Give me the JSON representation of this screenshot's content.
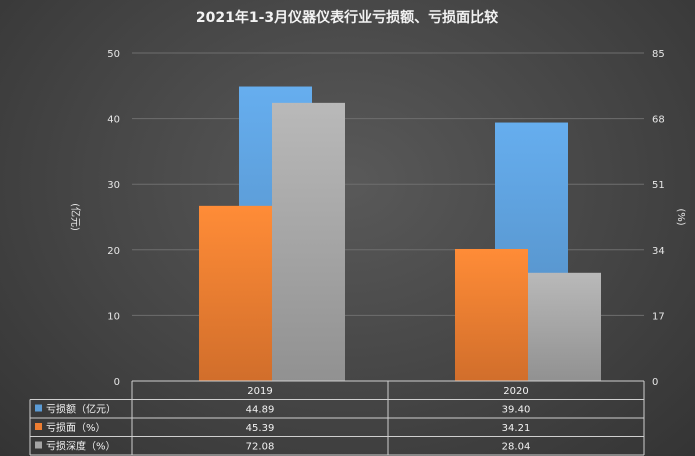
{
  "chart_data": {
    "type": "bar",
    "title": "2021年1-3月仪器仪表行业亏损额、亏损面比较",
    "categories": [
      "2019",
      "2020"
    ],
    "y_left": {
      "label": "(亿元)",
      "ylim": [
        0,
        50
      ],
      "ticks": [
        0,
        10,
        20,
        30,
        40,
        50
      ]
    },
    "y_right": {
      "label": "(%)",
      "ylim": [
        0,
        85
      ],
      "ticks": [
        0,
        17,
        34,
        51,
        68,
        85
      ]
    },
    "series": [
      {
        "name": "亏损额（亿元）",
        "axis": "left",
        "color": "#5b9bd5",
        "values": [
          44.89,
          39.4
        ],
        "display": [
          "44.89",
          "39.40"
        ]
      },
      {
        "name": "亏损面（%）",
        "axis": "right",
        "color": "#ed7d31",
        "values": [
          45.39,
          34.21
        ],
        "display": [
          "45.39",
          "34.21"
        ]
      },
      {
        "name": "亏损深度（%）",
        "axis": "right",
        "color": "#a5a5a5",
        "values": [
          72.08,
          28.04
        ],
        "display": [
          "72.08",
          "28.04"
        ]
      }
    ],
    "grid": true,
    "legend": "data-table"
  }
}
